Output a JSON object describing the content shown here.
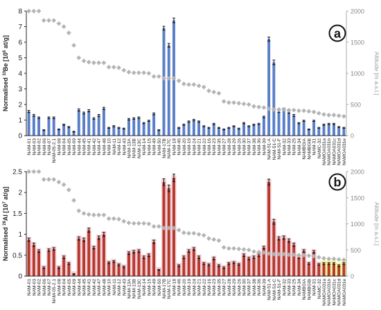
{
  "chart_data": [
    {
      "panel_label": "a",
      "type": "bar",
      "ylabel": "Normalised 10Be [10⁶ at/g]",
      "ylabel_parts": {
        "pre": "Normalised ",
        "sup": "10",
        "mid": "Be [10",
        "sup2": "6",
        "post": " at/g]"
      },
      "y2label": "Altitude [m a.s.l.]",
      "ylim": [
        0,
        8
      ],
      "yticks": [
        0,
        1,
        2,
        3,
        4,
        5,
        6,
        7,
        8
      ],
      "y2lim": [
        0,
        2000
      ],
      "y2ticks": [
        0,
        500,
        1000,
        1500,
        2000
      ],
      "categories": [
        "NAM-01",
        "NAM-03",
        "NAM-02",
        "NAM-06",
        "NAM-07",
        "NAM-05-2.1",
        "NAM-08",
        "NAM-04",
        "NAM-05",
        "NAM-09",
        "NAM-44",
        "NAM-45",
        "NAM-41",
        "NAM-42",
        "NAM-47",
        "NAM-48",
        "NAM-10",
        "NAM-11",
        "NAM-12",
        "NAM-43",
        "NAM-13A",
        "NAM-13B",
        "NAM-13C",
        "NAM-14",
        "NAM-15",
        "NAM-49",
        "NAM-50",
        "NAM-17B",
        "NAM-17C",
        "NAM-18",
        "NAM-46",
        "NAM-20",
        "NAM-19",
        "NAM-24",
        "NAM-21",
        "NAM-22",
        "NAM-16",
        "NAM-23",
        "NAM-35",
        "NAM-27",
        "NAM-28",
        "NAM-29",
        "NAM-26",
        "NAM-30",
        "NAM-37",
        "NAM-38",
        "NAM-36",
        "NAM-39",
        "NAM-51-A",
        "NAM-51-C",
        "NAM-51-F",
        "NAM-32",
        "NAM-33",
        "NAM-25",
        "NAM-34",
        "NAMBGIA",
        "NAMBGIB",
        "NAM-31",
        "NAMC-32",
        "NAMOA031a",
        "NAMOA031b",
        "NAMOA031c",
        "NAMOA031d",
        "NAMOA031e"
      ],
      "series": [
        {
          "values": [
            1.55,
            1.3,
            1.15,
            0.35,
            1.15,
            1.15,
            0.4,
            0.7,
            0.55,
            0.25,
            1.65,
            1.45,
            1.6,
            1.1,
            1.3,
            1.75,
            0.5,
            0.6,
            0.5,
            0.45,
            1.05,
            1.1,
            1.15,
            0.8,
            0.95,
            1.4,
            0.35,
            6.9,
            5.8,
            7.4,
            0.5,
            0.7,
            0.9,
            1.0,
            0.9,
            0.6,
            0.5,
            0.75,
            0.5,
            0.4,
            0.5,
            0.6,
            0.45,
            0.8,
            0.6,
            0.7,
            0.75,
            1.2,
            6.2,
            4.7,
            1.55,
            1.7,
            1.5,
            1.3,
            0.8,
            0.95,
            0.4,
            0.95,
            0.5,
            0.7,
            0.75,
            0.75,
            0.55,
            0.5
          ],
          "errors": [
            0.07,
            0.06,
            0.05,
            0.03,
            0.05,
            0.05,
            0.03,
            0.04,
            0.04,
            0.03,
            0.07,
            0.06,
            0.07,
            0.05,
            0.06,
            0.07,
            0.03,
            0.04,
            0.03,
            0.03,
            0.05,
            0.05,
            0.05,
            0.04,
            0.04,
            0.06,
            0.03,
            0.12,
            0.12,
            0.15,
            0.03,
            0.04,
            0.04,
            0.05,
            0.04,
            0.03,
            0.03,
            0.04,
            0.03,
            0.03,
            0.03,
            0.03,
            0.03,
            0.04,
            0.03,
            0.04,
            0.04,
            0.05,
            0.13,
            0.15,
            0.07,
            0.07,
            0.06,
            0.06,
            0.04,
            0.04,
            0.03,
            0.04,
            0.03,
            0.04,
            0.04,
            0.04,
            0.03,
            0.03
          ]
        }
      ],
      "altitude": [
        2000,
        2000,
        2000,
        1850,
        1850,
        1850,
        1800,
        1750,
        1650,
        1450,
        1250,
        1200,
        1180,
        1170,
        1170,
        1170,
        1100,
        1100,
        1090,
        1050,
        1020,
        1010,
        1010,
        1010,
        1000,
        950,
        950,
        920,
        920,
        920,
        880,
        830,
        820,
        820,
        800,
        780,
        720,
        700,
        680,
        550,
        530,
        530,
        520,
        510,
        500,
        470,
        460,
        450,
        430,
        420,
        420,
        420,
        410,
        410,
        400,
        400,
        390,
        380,
        360,
        340,
        330,
        330,
        320,
        310
      ]
    },
    {
      "panel_label": "b",
      "type": "bar",
      "ylabel": "Normalised 26Al [10⁷ at/g]",
      "ylabel_parts": {
        "pre": "Normalised ",
        "sup": "26",
        "mid": "Al [10",
        "sup2": "7",
        "post": " at/g]"
      },
      "y2label": "Altitude [m a.s.l.]",
      "ylim": [
        0,
        2.5
      ],
      "yticks": [
        0,
        0.5,
        1,
        1.5,
        2,
        2.5
      ],
      "y2lim": [
        0,
        2000
      ],
      "y2ticks": [
        0,
        500,
        1000,
        1500,
        2000
      ],
      "categories": [
        "NAM-01",
        "NAM-03",
        "NAM-02",
        "NAM-06",
        "NAM-07",
        "NAM-05-2.1",
        "NAM-08",
        "NAM-04",
        "NAM-05",
        "NAM-09",
        "NAM-44",
        "NAM-45",
        "NAM-41",
        "NAM-42",
        "NAM-47",
        "NAM-48",
        "NAM-10",
        "NAM-11",
        "NAM-12",
        "NAM-43",
        "NAM-13A",
        "NAM-13B",
        "NAM-13C",
        "NAM-14",
        "NAM-15",
        "NAM-49",
        "NAM-50",
        "NAM-17B",
        "NAM-17C",
        "NAM-18",
        "NAM-46",
        "NAM-20",
        "NAM-19",
        "NAM-24",
        "NAM-21",
        "NAM-22",
        "NAM-16",
        "NAM-23",
        "NAM-35",
        "NAM-27",
        "NAM-28",
        "NAM-29",
        "NAM-26",
        "NAM-30",
        "NAM-37",
        "NAM-38",
        "NAM-36",
        "NAM-39",
        "NAM-51-A",
        "NAM-51-C",
        "NAM-51-F",
        "NAM-32",
        "NAM-33",
        "NAM-25",
        "NAM-34",
        "NAMBGIA",
        "NAMBGIB",
        "NAM-31",
        "NAMC-32",
        "NAMOA031a",
        "NAMOA031b",
        "NAMOA031c",
        "NAMOA031d",
        "NAMOA031e"
      ],
      "series": [
        {
          "values": [
            0.87,
            0.75,
            0.6,
            0.2,
            0.62,
            0.65,
            0.2,
            0.45,
            0.3,
            0.05,
            0.9,
            0.87,
            1.1,
            0.68,
            0.92,
            1.0,
            0.32,
            0.35,
            0.27,
            0.22,
            0.55,
            0.58,
            0.6,
            0.45,
            0.5,
            0.82,
            0.15,
            2.25,
            2.1,
            2.35,
            0.25,
            0.45,
            0.6,
            0.65,
            0.45,
            0.3,
            0.27,
            0.42,
            0.25,
            0.2,
            0.3,
            0.32,
            0.28,
            0.5,
            0.42,
            0.45,
            0.5,
            0.68,
            2.25,
            1.3,
            0.9,
            0.92,
            0.85,
            0.75,
            0.45,
            0.6,
            0.3,
            0.58,
            0.28,
            0.3,
            0.3,
            0.3,
            0.25,
            0.3
          ],
          "errors": [
            0.04,
            0.04,
            0.03,
            0.02,
            0.03,
            0.03,
            0.02,
            0.03,
            0.02,
            0.01,
            0.04,
            0.04,
            0.05,
            0.03,
            0.04,
            0.05,
            0.02,
            0.02,
            0.02,
            0.02,
            0.03,
            0.03,
            0.03,
            0.03,
            0.03,
            0.04,
            0.01,
            0.08,
            0.08,
            0.09,
            0.02,
            0.03,
            0.03,
            0.03,
            0.03,
            0.02,
            0.02,
            0.03,
            0.02,
            0.02,
            0.02,
            0.02,
            0.02,
            0.03,
            0.03,
            0.03,
            0.03,
            0.03,
            0.07,
            0.06,
            0.04,
            0.04,
            0.04,
            0.04,
            0.03,
            0.03,
            0.02,
            0.03,
            0.02,
            0.02,
            0.02,
            0.02,
            0.02,
            0.02
          ]
        }
      ],
      "altitude": [
        2000,
        2000,
        2000,
        1850,
        1850,
        1850,
        1800,
        1750,
        1650,
        1450,
        1250,
        1200,
        1180,
        1170,
        1170,
        1170,
        1100,
        1100,
        1090,
        1050,
        1020,
        1010,
        1010,
        1010,
        1000,
        950,
        950,
        920,
        920,
        920,
        880,
        830,
        820,
        820,
        800,
        780,
        720,
        700,
        680,
        550,
        530,
        530,
        520,
        510,
        500,
        470,
        460,
        450,
        430,
        420,
        420,
        420,
        410,
        410,
        400,
        400,
        390,
        380,
        360,
        340,
        330,
        330,
        320,
        310
      ]
    }
  ],
  "colors": {
    "bar_a": "#5b7fc7",
    "bar_b": "#b53a2e",
    "halo_b": "#f2c2cc",
    "halo_b_last": "#ecec7a",
    "altitude_marker": "#b4b4b4",
    "axis": "#222222",
    "right_axis": "#aaaaaa"
  },
  "icons": {
    "panel_badge": "circled-letter"
  }
}
